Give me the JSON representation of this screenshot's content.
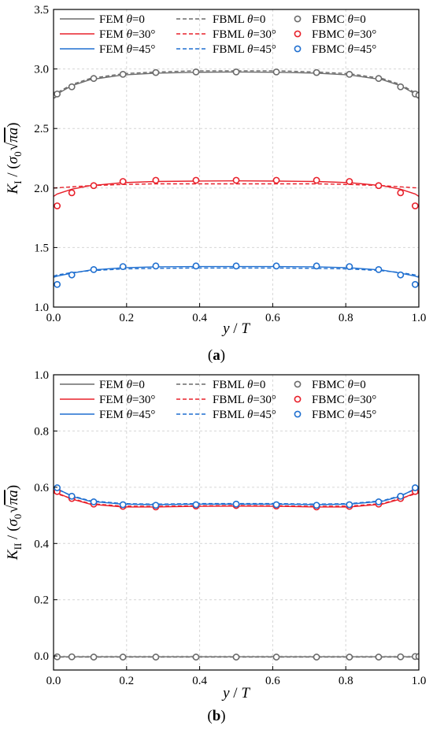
{
  "chart_data": [
    {
      "type": "line",
      "panel": "(a)",
      "caption": {
        "open": "(",
        "letter": "a",
        "close": ")"
      },
      "xlabel": {
        "main": "y",
        "sep": " / ",
        "var": "T"
      },
      "ylabel": {
        "k": "K",
        "sub": "I",
        "slash": " / (",
        "sigma": "σ",
        "sigsub": "0",
        "pi": "πa",
        "close": ")"
      },
      "xlim": [
        0,
        1
      ],
      "ylim": [
        1.0,
        3.5
      ],
      "xticks": [
        "0.0",
        "0.2",
        "0.4",
        "0.6",
        "0.8",
        "1.0"
      ],
      "yticks": [
        "1.0",
        "1.5",
        "2.0",
        "2.5",
        "3.0",
        "3.5"
      ],
      "grid": true,
      "legend": "top",
      "series": [
        {
          "name": "FEM θ=0",
          "method": "FEM",
          "angle": "0",
          "color": "#6b6b6b",
          "style": "solid",
          "x": [
            0,
            0.01,
            0.05,
            0.1,
            0.19,
            0.28,
            0.39,
            0.5,
            0.61,
            0.72,
            0.81,
            0.9,
            0.95,
            0.99,
            1.0
          ],
          "y": [
            2.76,
            2.79,
            2.86,
            2.91,
            2.95,
            2.965,
            2.972,
            2.975,
            2.972,
            2.965,
            2.95,
            2.91,
            2.86,
            2.79,
            2.76
          ]
        },
        {
          "name": "FEM θ=30°",
          "method": "FEM",
          "angle": "30°",
          "color": "#e8202a",
          "style": "solid",
          "x": [
            0,
            0.01,
            0.05,
            0.1,
            0.19,
            0.28,
            0.39,
            0.5,
            0.61,
            0.72,
            0.81,
            0.9,
            0.95,
            0.99,
            1.0
          ],
          "y": [
            1.93,
            1.95,
            1.99,
            2.02,
            2.045,
            2.055,
            2.058,
            2.06,
            2.058,
            2.055,
            2.045,
            2.02,
            1.99,
            1.95,
            1.93
          ]
        },
        {
          "name": "FEM θ=45°",
          "method": "FEM",
          "angle": "45°",
          "color": "#1f6fd0",
          "style": "solid",
          "x": [
            0,
            0.01,
            0.05,
            0.1,
            0.19,
            0.28,
            0.39,
            0.5,
            0.61,
            0.72,
            0.81,
            0.9,
            0.95,
            0.99,
            1.0
          ],
          "y": [
            1.25,
            1.26,
            1.285,
            1.31,
            1.33,
            1.338,
            1.34,
            1.34,
            1.34,
            1.338,
            1.33,
            1.31,
            1.285,
            1.26,
            1.25
          ]
        },
        {
          "name": "FBML θ=0",
          "method": "FBML",
          "angle": "0",
          "color": "#6b6b6b",
          "style": "dashed",
          "x": [
            0,
            0.01,
            0.05,
            0.1,
            0.19,
            0.28,
            0.39,
            0.5,
            0.61,
            0.72,
            0.81,
            0.9,
            0.95,
            0.99,
            1.0
          ],
          "y": [
            2.77,
            2.8,
            2.87,
            2.92,
            2.96,
            2.975,
            2.985,
            2.985,
            2.985,
            2.975,
            2.96,
            2.92,
            2.87,
            2.8,
            2.77
          ]
        },
        {
          "name": "FBML θ=30°",
          "method": "FBML",
          "angle": "30°",
          "color": "#e8202a",
          "style": "dashed",
          "x": [
            0,
            0.05,
            0.1,
            0.19,
            0.28,
            0.39,
            0.5,
            0.61,
            0.72,
            0.81,
            0.9,
            0.95,
            1.0
          ],
          "y": [
            2.0,
            2.01,
            2.02,
            2.03,
            2.035,
            2.035,
            2.035,
            2.035,
            2.035,
            2.03,
            2.02,
            2.01,
            2.0
          ]
        },
        {
          "name": "FBML θ=45°",
          "method": "FBML",
          "angle": "45°",
          "color": "#1f6fd0",
          "style": "dashed",
          "x": [
            0,
            0.01,
            0.05,
            0.1,
            0.19,
            0.28,
            0.39,
            0.5,
            0.61,
            0.72,
            0.81,
            0.9,
            0.95,
            0.99,
            1.0
          ],
          "y": [
            1.26,
            1.27,
            1.29,
            1.305,
            1.32,
            1.325,
            1.328,
            1.328,
            1.328,
            1.325,
            1.32,
            1.305,
            1.29,
            1.27,
            1.26
          ]
        },
        {
          "name": "FBMC θ=0",
          "method": "FBMC",
          "angle": "0",
          "color": "#6b6b6b",
          "style": "marker",
          "x": [
            0,
            0.01,
            0.05,
            0.11,
            0.19,
            0.28,
            0.39,
            0.5,
            0.61,
            0.72,
            0.81,
            0.89,
            0.95,
            0.99,
            1.0
          ],
          "y": [
            2.78,
            2.79,
            2.85,
            2.92,
            2.955,
            2.97,
            2.975,
            2.975,
            2.975,
            2.97,
            2.955,
            2.92,
            2.85,
            2.79,
            2.78
          ]
        },
        {
          "name": "FBMC θ=30°",
          "method": "FBMC",
          "angle": "30°",
          "color": "#e8202a",
          "style": "marker",
          "x": [
            0.01,
            0.05,
            0.11,
            0.19,
            0.28,
            0.39,
            0.5,
            0.61,
            0.72,
            0.81,
            0.89,
            0.95,
            0.99
          ],
          "y": [
            1.85,
            1.96,
            2.02,
            2.055,
            2.065,
            2.065,
            2.065,
            2.065,
            2.065,
            2.055,
            2.02,
            1.96,
            1.85
          ]
        },
        {
          "name": "FBMC θ=45°",
          "method": "FBMC",
          "angle": "45°",
          "color": "#1f6fd0",
          "style": "marker",
          "x": [
            0.01,
            0.05,
            0.11,
            0.19,
            0.28,
            0.39,
            0.5,
            0.61,
            0.72,
            0.81,
            0.89,
            0.95,
            0.99
          ],
          "y": [
            1.19,
            1.27,
            1.315,
            1.34,
            1.345,
            1.345,
            1.345,
            1.345,
            1.345,
            1.34,
            1.315,
            1.27,
            1.19
          ]
        }
      ]
    },
    {
      "type": "line",
      "panel": "(b)",
      "caption": {
        "open": "(",
        "letter": "b",
        "close": ")"
      },
      "xlabel": {
        "main": "y",
        "sep": " / ",
        "var": "T"
      },
      "ylabel": {
        "k": "K",
        "sub": "II",
        "slash": " / (",
        "sigma": "σ",
        "sigsub": "0",
        "pi": "πa",
        "close": ")"
      },
      "xlim": [
        0,
        1
      ],
      "ylim": [
        -0.05,
        1.0
      ],
      "xticks": [
        "0.0",
        "0.2",
        "0.4",
        "0.6",
        "0.8",
        "1.0"
      ],
      "yticks": [
        "0.0",
        "0.2",
        "0.4",
        "0.6",
        "0.8",
        "1.0"
      ],
      "ytick_values": [
        0.0,
        0.2,
        0.4,
        0.6,
        0.8,
        1.0
      ],
      "grid": true,
      "legend": "top",
      "series": [
        {
          "name": "FEM θ=0",
          "method": "FEM",
          "angle": "0",
          "color": "#6b6b6b",
          "style": "solid",
          "x": [
            0,
            1.0
          ],
          "y": [
            -0.003,
            -0.003
          ]
        },
        {
          "name": "FEM θ=30°",
          "method": "FEM",
          "angle": "30°",
          "color": "#e8202a",
          "style": "solid",
          "x": [
            0,
            0.01,
            0.05,
            0.1,
            0.19,
            0.28,
            0.39,
            0.5,
            0.61,
            0.72,
            0.81,
            0.9,
            0.95,
            0.99,
            1.0
          ],
          "y": [
            0.585,
            0.58,
            0.558,
            0.54,
            0.53,
            0.53,
            0.532,
            0.533,
            0.532,
            0.53,
            0.53,
            0.54,
            0.558,
            0.58,
            0.585
          ]
        },
        {
          "name": "FEM θ=45°",
          "method": "FEM",
          "angle": "45°",
          "color": "#1f6fd0",
          "style": "solid",
          "x": [
            0,
            0.01,
            0.05,
            0.1,
            0.19,
            0.28,
            0.39,
            0.5,
            0.61,
            0.72,
            0.81,
            0.9,
            0.95,
            0.99,
            1.0
          ],
          "y": [
            0.6,
            0.595,
            0.568,
            0.55,
            0.54,
            0.538,
            0.54,
            0.54,
            0.54,
            0.538,
            0.54,
            0.55,
            0.568,
            0.595,
            0.6
          ]
        },
        {
          "name": "FBML θ=0",
          "method": "FBML",
          "angle": "0",
          "color": "#6b6b6b",
          "style": "dashed",
          "x": [
            0,
            1.0
          ],
          "y": [
            -0.004,
            -0.004
          ]
        },
        {
          "name": "FBML θ=30°",
          "method": "FBML",
          "angle": "30°",
          "color": "#e8202a",
          "style": "dashed",
          "x": [
            0,
            0.05,
            0.1,
            0.19,
            0.28,
            0.39,
            0.5,
            0.61,
            0.72,
            0.81,
            0.9,
            0.95,
            1.0
          ],
          "y": [
            0.58,
            0.56,
            0.542,
            0.533,
            0.532,
            0.534,
            0.535,
            0.534,
            0.532,
            0.533,
            0.542,
            0.56,
            0.58
          ]
        },
        {
          "name": "FBML θ=45°",
          "method": "FBML",
          "angle": "45°",
          "color": "#1f6fd0",
          "style": "dashed",
          "x": [
            0,
            0.05,
            0.1,
            0.19,
            0.28,
            0.39,
            0.5,
            0.61,
            0.72,
            0.81,
            0.9,
            0.95,
            1.0
          ],
          "y": [
            0.598,
            0.57,
            0.552,
            0.542,
            0.54,
            0.542,
            0.542,
            0.542,
            0.54,
            0.542,
            0.552,
            0.57,
            0.598
          ]
        },
        {
          "name": "FBMC θ=0",
          "method": "FBMC",
          "angle": "0",
          "color": "#6b6b6b",
          "style": "marker",
          "x": [
            0.01,
            0.05,
            0.11,
            0.19,
            0.28,
            0.39,
            0.5,
            0.61,
            0.72,
            0.81,
            0.89,
            0.95,
            0.99,
            1.0
          ],
          "y": [
            -0.003,
            -0.003,
            -0.004,
            -0.004,
            -0.004,
            -0.004,
            -0.004,
            -0.004,
            -0.004,
            -0.004,
            -0.004,
            -0.003,
            -0.002,
            -0.002
          ]
        },
        {
          "name": "FBMC θ=30°",
          "method": "FBMC",
          "angle": "30°",
          "color": "#e8202a",
          "style": "marker",
          "x": [
            0.01,
            0.05,
            0.11,
            0.19,
            0.28,
            0.39,
            0.5,
            0.61,
            0.72,
            0.81,
            0.89,
            0.95,
            0.99
          ],
          "y": [
            0.585,
            0.56,
            0.54,
            0.532,
            0.53,
            0.533,
            0.535,
            0.533,
            0.53,
            0.532,
            0.54,
            0.56,
            0.585
          ]
        },
        {
          "name": "FBMC θ=45°",
          "method": "FBMC",
          "angle": "45°",
          "color": "#1f6fd0",
          "style": "marker",
          "x": [
            0.01,
            0.05,
            0.11,
            0.19,
            0.28,
            0.39,
            0.5,
            0.61,
            0.72,
            0.81,
            0.89,
            0.95,
            0.99
          ],
          "y": [
            0.598,
            0.568,
            0.548,
            0.538,
            0.536,
            0.538,
            0.54,
            0.538,
            0.536,
            0.538,
            0.548,
            0.568,
            0.598
          ]
        }
      ]
    }
  ]
}
